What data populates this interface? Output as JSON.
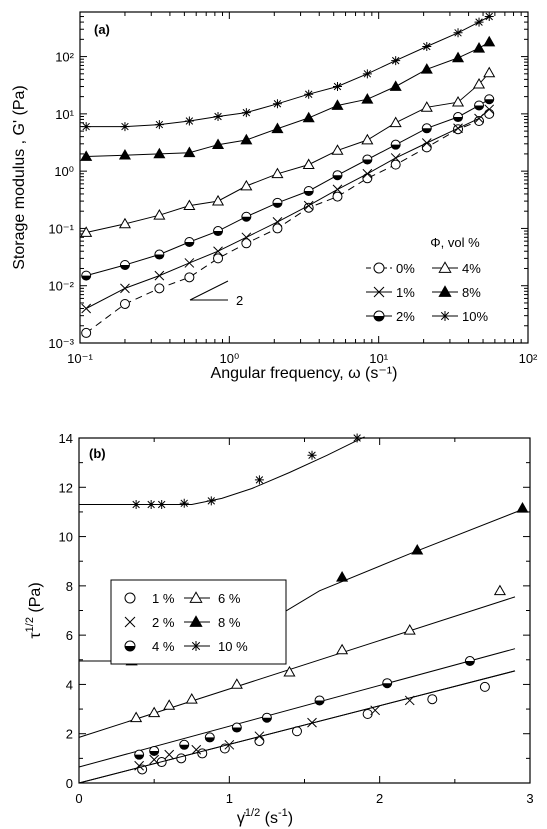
{
  "chart_data": [
    {
      "panel": "(a)",
      "type": "scatter",
      "xlabel": "Angular frequency, ω (s⁻¹)",
      "ylabel": "Storage modulus , G' (Pa)",
      "xscale": "log",
      "yscale": "log",
      "xlim": [
        0.1,
        100
      ],
      "ylim": [
        0.001,
        600
      ],
      "x_ticks": [
        "10⁻¹",
        "10⁰",
        "10¹",
        "10²"
      ],
      "y_ticks": [
        "10⁻³",
        "10⁻²",
        "10⁻¹",
        "10⁰",
        "10¹",
        "10²"
      ],
      "legend_title": "Φ, vol %",
      "legend_position": "bottom-right",
      "annotation": "2",
      "series": [
        {
          "name": "0%",
          "marker": "open-circle",
          "dashed": true,
          "x": [
            0.11,
            0.2,
            0.34,
            0.54,
            0.84,
            1.3,
            2.1,
            3.4,
            5.3,
            8.4,
            13,
            21,
            34,
            47,
            55
          ],
          "y": [
            0.0015,
            0.0048,
            0.009,
            0.014,
            0.03,
            0.055,
            0.1,
            0.23,
            0.36,
            0.75,
            1.3,
            2.6,
            5.4,
            7.5,
            10
          ]
        },
        {
          "name": "1%",
          "marker": "x",
          "x": [
            0.11,
            0.2,
            0.34,
            0.54,
            0.84,
            1.3,
            2.1,
            3.4,
            5.3,
            8.4,
            13,
            21,
            34,
            47,
            55
          ],
          "y": [
            0.004,
            0.009,
            0.015,
            0.025,
            0.04,
            0.07,
            0.13,
            0.25,
            0.48,
            0.9,
            1.7,
            3.1,
            5.6,
            8.3,
            12
          ]
        },
        {
          "name": "2%",
          "marker": "half-filled-circle",
          "x": [
            0.11,
            0.2,
            0.34,
            0.54,
            0.84,
            1.3,
            2.1,
            3.4,
            5.3,
            8.4,
            13,
            21,
            34,
            47,
            55
          ],
          "y": [
            0.015,
            0.023,
            0.035,
            0.058,
            0.09,
            0.16,
            0.28,
            0.45,
            0.85,
            1.6,
            2.9,
            5.6,
            8.8,
            14,
            18
          ]
        },
        {
          "name": "4%",
          "marker": "open-triangle",
          "x": [
            0.11,
            0.2,
            0.34,
            0.54,
            0.84,
            1.3,
            2.1,
            3.4,
            5.3,
            8.4,
            13,
            21,
            34,
            47,
            55
          ],
          "y": [
            0.085,
            0.12,
            0.17,
            0.25,
            0.3,
            0.55,
            0.9,
            1.3,
            2.3,
            3.5,
            7,
            13,
            16,
            33,
            52
          ]
        },
        {
          "name": "8%",
          "marker": "filled-triangle",
          "x": [
            0.11,
            0.2,
            0.34,
            0.54,
            0.84,
            1.3,
            2.1,
            3.4,
            5.3,
            8.4,
            13,
            21,
            34,
            47,
            55
          ],
          "y": [
            1.8,
            1.9,
            2.0,
            2.1,
            2.9,
            3.5,
            5.5,
            8.5,
            14,
            18,
            30,
            60,
            95,
            140,
            180
          ]
        },
        {
          "name": "10%",
          "marker": "asterisk",
          "x": [
            0.11,
            0.2,
            0.34,
            0.54,
            0.84,
            1.3,
            2.1,
            3.4,
            5.3,
            8.4,
            13,
            21,
            34,
            47,
            55
          ],
          "y": [
            6,
            6,
            6.5,
            7.5,
            9,
            10.5,
            15,
            22,
            30,
            50,
            85,
            150,
            260,
            400,
            500
          ]
        }
      ]
    },
    {
      "panel": "(b)",
      "type": "scatter",
      "xlabel": "γ̇^1/2 (s^-1)",
      "ylabel": "τ^1/2 (Pa)",
      "xlim": [
        0,
        3
      ],
      "ylim": [
        0,
        14
      ],
      "x_ticks": [
        "0",
        "1",
        "2",
        "3"
      ],
      "y_ticks": [
        "0",
        "2",
        "4",
        "6",
        "8",
        "10",
        "12",
        "14"
      ],
      "legend_position": "upper-left",
      "series": [
        {
          "name": "1 %",
          "marker": "open-circle",
          "x": [
            0.42,
            0.55,
            0.68,
            0.82,
            0.97,
            1.2,
            1.45,
            1.92,
            2.35,
            2.7
          ],
          "y": [
            0.55,
            0.85,
            1.0,
            1.2,
            1.4,
            1.7,
            2.1,
            2.8,
            3.4,
            3.9
          ],
          "fit": {
            "x": [
              0,
              2.9
            ],
            "y": [
              0,
              4.55
            ]
          }
        },
        {
          "name": "2 %",
          "marker": "x",
          "x": [
            0.4,
            0.5,
            0.6,
            0.78,
            1.0,
            1.2,
            1.55,
            1.97,
            2.2
          ],
          "y": [
            0.7,
            0.95,
            1.15,
            1.35,
            1.55,
            1.9,
            2.45,
            2.95,
            3.35
          ],
          "fit": {
            "x": [
              0,
              2.9
            ],
            "y": [
              0,
              4.55
            ]
          }
        },
        {
          "name": "4 %",
          "marker": "half-filled-circle",
          "x": [
            0.4,
            0.5,
            0.7,
            0.87,
            1.05,
            1.25,
            1.6,
            2.05,
            2.6
          ],
          "y": [
            1.15,
            1.3,
            1.55,
            1.85,
            2.25,
            2.65,
            3.35,
            4.05,
            4.95
          ],
          "fit": {
            "x": [
              0,
              2.9
            ],
            "y": [
              0.65,
              5.45
            ]
          }
        },
        {
          "name": "6 %",
          "marker": "open-triangle",
          "x": [
            0.38,
            0.5,
            0.6,
            0.75,
            1.05,
            1.4,
            1.75,
            2.2,
            2.8
          ],
          "y": [
            2.65,
            2.85,
            3.15,
            3.4,
            4.0,
            4.5,
            5.4,
            6.2,
            7.8
          ],
          "fit": {
            "x": [
              0,
              2.9
            ],
            "y": [
              1.85,
              7.55
            ]
          }
        },
        {
          "name": "8 %",
          "marker": "filled-triangle",
          "x": [
            0.35,
            0.45,
            0.6,
            0.8,
            1.05,
            1.3,
            1.75,
            2.25,
            2.95
          ],
          "y": [
            4.95,
            5.0,
            5.0,
            5.3,
            6.1,
            6.95,
            8.35,
            9.45,
            11.15
          ],
          "fit": {
            "x": [
              0,
              0.65,
              0.85,
              1.05,
              1.3,
              1.6,
              2.2,
              2.95
            ],
            "y": [
              4.95,
              4.95,
              5.2,
              5.9,
              6.7,
              7.8,
              9.3,
              11.1
            ]
          }
        },
        {
          "name": "10 %",
          "marker": "asterisk",
          "x": [
            0.38,
            0.48,
            0.55,
            0.7,
            0.88,
            1.2,
            1.55,
            1.85
          ],
          "y": [
            11.3,
            11.3,
            11.3,
            11.35,
            11.45,
            12.3,
            13.3,
            14.0
          ],
          "fit": {
            "x": [
              0,
              0.75,
              0.95,
              1.15,
              1.4,
              1.65,
              1.9
            ],
            "y": [
              11.3,
              11.3,
              11.55,
              11.95,
              12.6,
              13.3,
              14.05
            ]
          }
        }
      ]
    }
  ]
}
